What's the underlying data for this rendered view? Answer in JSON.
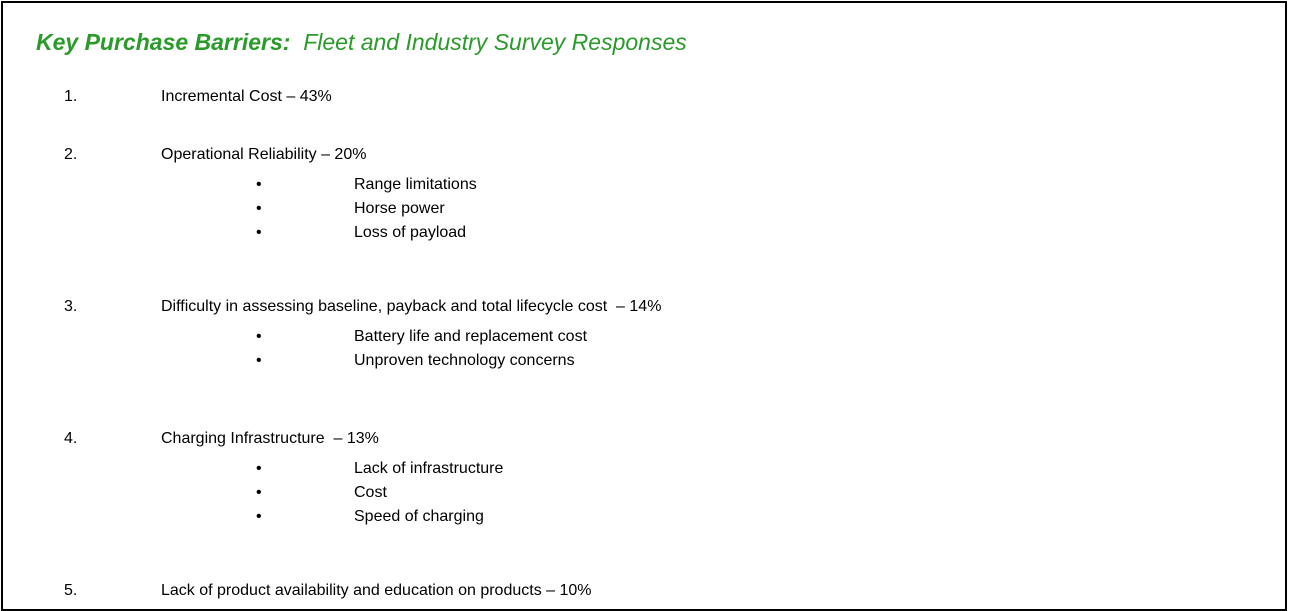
{
  "header": {
    "title_bold": "Key Purchase Barriers:",
    "title_rest": "Fleet and Industry Survey Responses"
  },
  "items": [
    {
      "number": "1.",
      "text": "Incremental Cost – 43%",
      "bullets": []
    },
    {
      "number": "2.",
      "text": "Operational Reliability – 20%",
      "bullets": [
        "Range limitations",
        "Horse power",
        "Loss of payload"
      ]
    },
    {
      "number": "3.",
      "text": "Difficulty in assessing baseline, payback and total lifecycle cost  – 14%",
      "bullets": [
        "Battery life and replacement cost",
        "Unproven technology concerns"
      ]
    },
    {
      "number": "4.",
      "text": "Charging Infrastructure  – 13%",
      "bullets": [
        "Lack of infrastructure",
        "Cost",
        "Speed of charging"
      ]
    },
    {
      "number": "5.",
      "text": "Lack of product availability and education on products – 10%",
      "bullets": []
    }
  ]
}
